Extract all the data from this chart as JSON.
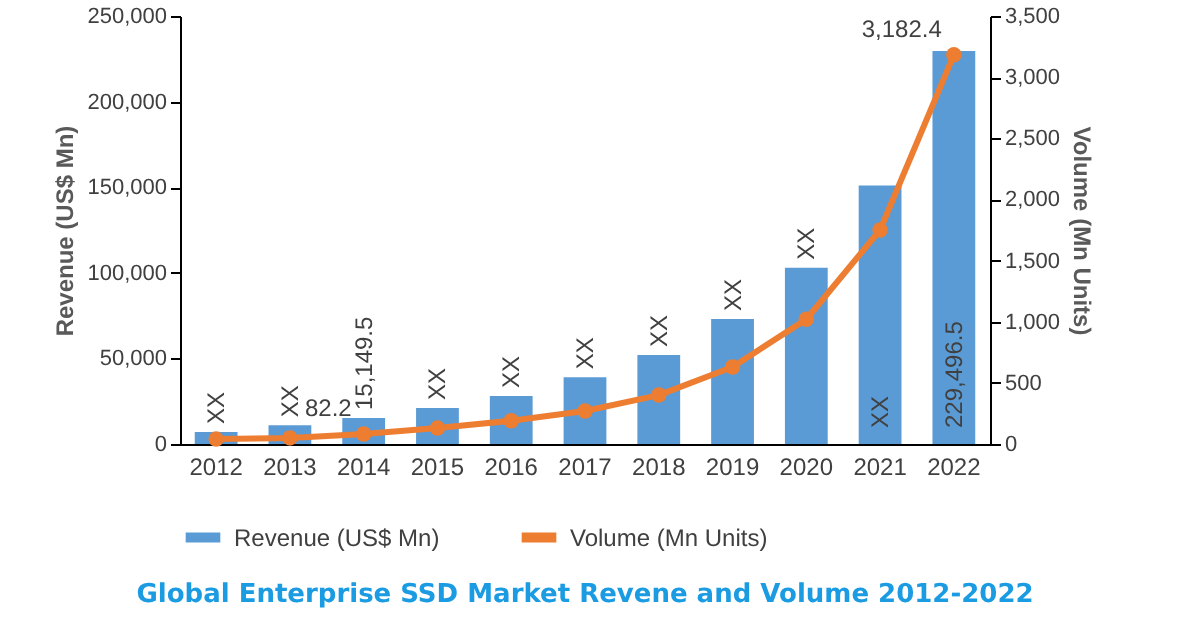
{
  "chart_data": {
    "type": "bar",
    "title": "Global Enterprise SSD Market Revene and Volume 2012-2022",
    "ylabel": "Revenue (US$ Mn)",
    "y2label": "Volume (Mn Units)",
    "categories": [
      "2012",
      "2013",
      "2014",
      "2015",
      "2016",
      "2017",
      "2018",
      "2019",
      "2020",
      "2021",
      "2022"
    ],
    "series": [
      {
        "name": "Revenue (US$ Mn)",
        "color": "#5b9bd5",
        "values": [
          7000,
          11000,
          15149.5,
          21000,
          28000,
          39000,
          52000,
          73000,
          103000,
          151000,
          229496.5
        ],
        "value_labels": [
          "XX",
          "XX",
          "15,149.5",
          "XX",
          "XX",
          "XX",
          "XX",
          "XX",
          "XX",
          "XX",
          "229,496.5"
        ]
      },
      {
        "name": "Volume (Mn Units)",
        "type": "line",
        "axis": "y2",
        "color": "#ed7d31",
        "values": [
          40,
          50,
          82.2,
          130,
          190,
          270,
          400,
          630,
          1020,
          1750,
          3182.4
        ],
        "value_labels": [
          null,
          null,
          "82.2",
          null,
          null,
          null,
          null,
          null,
          null,
          null,
          "3,182.4"
        ]
      }
    ],
    "ylim": [
      0,
      250000
    ],
    "yticks": [
      0,
      {
        "value": 50000,
        "label": "50,000"
      },
      {
        "value": 100000,
        "label": "100,000"
      },
      {
        "value": 150000,
        "label": "150,000"
      },
      {
        "value": 200000,
        "label": "200,000"
      },
      {
        "value": 250000,
        "label": "250,000"
      }
    ],
    "y2lim": [
      0,
      3500
    ],
    "y2ticks": [
      0,
      500,
      {
        "value": 1000,
        "label": "1,000"
      },
      {
        "value": 1500,
        "label": "1,500"
      },
      {
        "value": 2000,
        "label": "2,000"
      },
      {
        "value": 2500,
        "label": "2,500"
      },
      {
        "value": 3000,
        "label": "3,000"
      },
      {
        "value": 3500,
        "label": "3,500"
      }
    ],
    "marker": "circle",
    "legend": "bottom"
  }
}
